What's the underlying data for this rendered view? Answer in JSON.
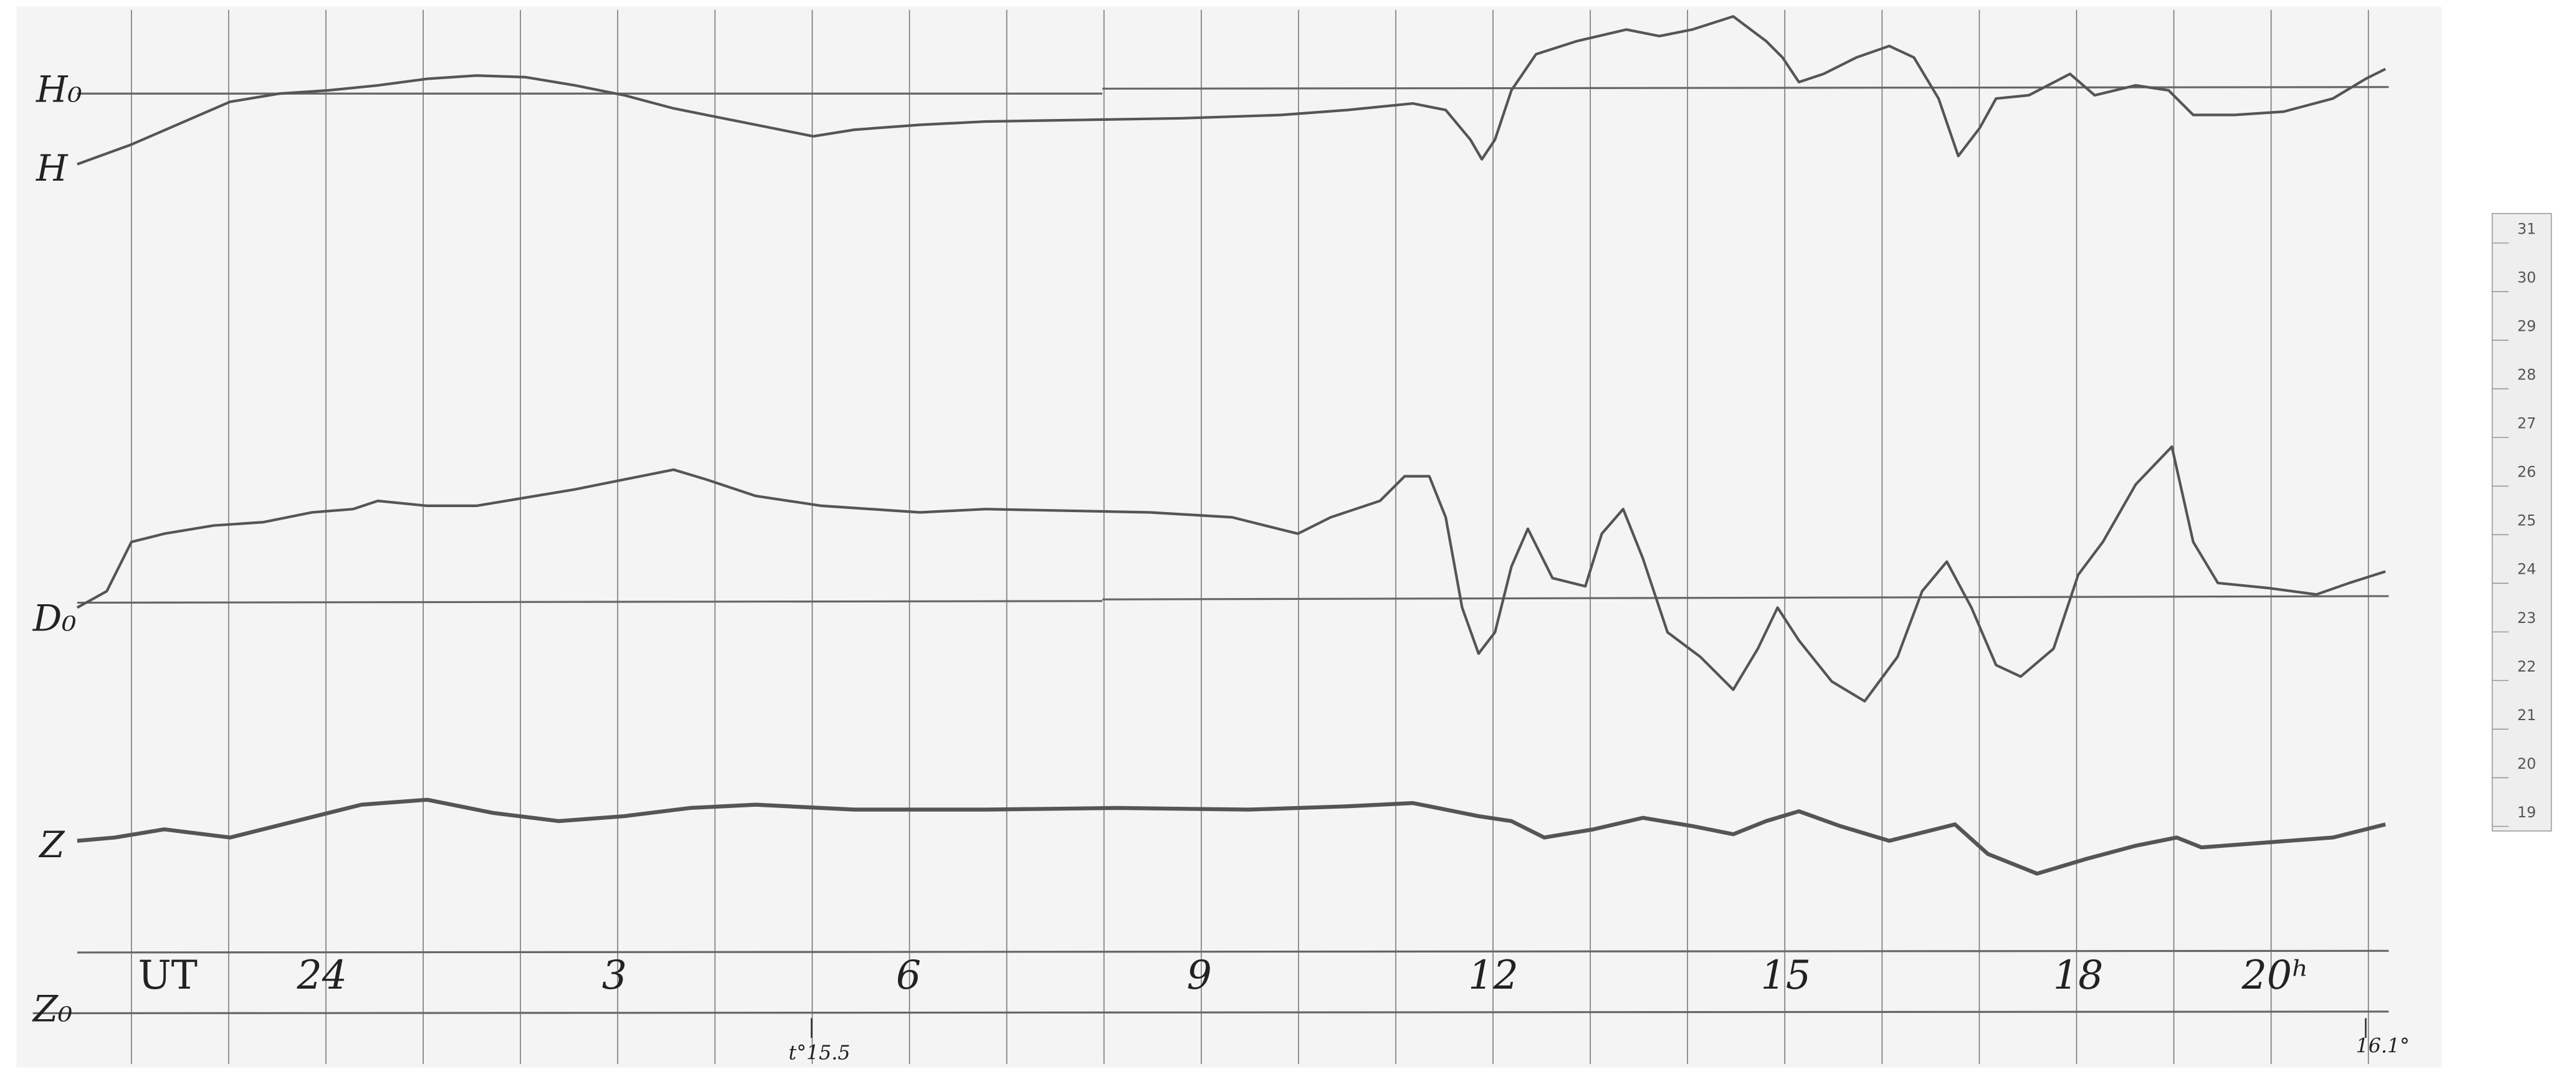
{
  "labels": {
    "h_base": "H₀",
    "h": "H",
    "d_base": "D₀",
    "z": "Z",
    "z_base": "Z₀"
  },
  "time_axis": {
    "unit": "UT",
    "hours": [
      "24",
      "3",
      "6",
      "9",
      "12",
      "15",
      "18",
      "20ʰ"
    ]
  },
  "temperatures": [
    "t°15.5",
    "16.1°"
  ],
  "scale": [
    "31",
    "30",
    "29",
    "28",
    "27",
    "26",
    "25",
    "24",
    "23",
    "22",
    "21",
    "20",
    "19"
  ]
}
